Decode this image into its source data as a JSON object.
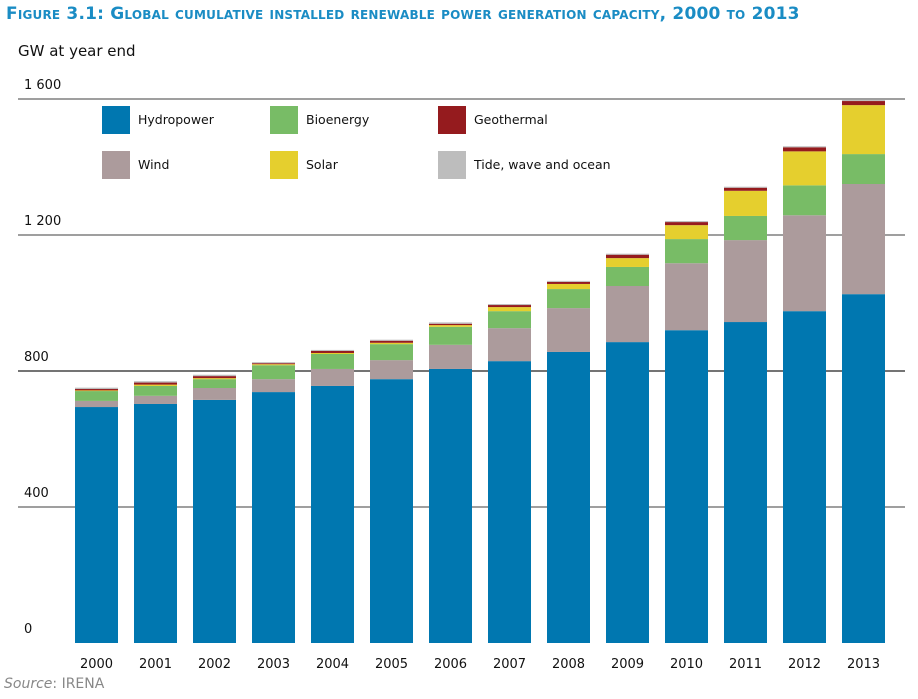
{
  "chart_data": {
    "type": "bar",
    "stacked": true,
    "title": "Figure 3.1: Global cumulative installed renewable power generation capacity, 2000 to 2013",
    "ylabel": "GW at year end",
    "xlabel": "",
    "ylim": [
      0,
      1600
    ],
    "yticks": [
      "0",
      "400",
      "800",
      "1 200",
      "1 600"
    ],
    "ytick_values": [
      0,
      400,
      800,
      1200,
      1600
    ],
    "grid": true,
    "legend_position": "top-left",
    "categories": [
      "2000",
      "2001",
      "2002",
      "2003",
      "2004",
      "2005",
      "2006",
      "2007",
      "2008",
      "2009",
      "2010",
      "2011",
      "2012",
      "2013"
    ],
    "series": [
      {
        "name": "Hydropower",
        "color": "#0077b0",
        "values": [
          694,
          703,
          715,
          738,
          756,
          776,
          806,
          829,
          856,
          885,
          920,
          944,
          976,
          1026
        ]
      },
      {
        "name": "Wind",
        "color": "#ac9b9c",
        "values": [
          18,
          24,
          35,
          38,
          50,
          56,
          71,
          97,
          129,
          165,
          197,
          241,
          282,
          324
        ]
      },
      {
        "name": "Bioenergy",
        "color": "#78bc66",
        "values": [
          29,
          29,
          26,
          41,
          44,
          47,
          53,
          50,
          56,
          56,
          71,
          71,
          88,
          88
        ]
      },
      {
        "name": "Solar",
        "color": "#e5cf2e",
        "values": [
          2,
          4,
          3,
          3,
          3,
          4,
          5,
          12,
          15,
          26,
          41,
          74,
          100,
          144
        ]
      },
      {
        "name": "Geothermal",
        "color": "#951b1e",
        "values": [
          4,
          6,
          6,
          3,
          6,
          6,
          4,
          6,
          6,
          10,
          9,
          9,
          12,
          12
        ]
      },
      {
        "name": "Tide, wave and ocean",
        "color": "#bdbdbd",
        "values": [
          4,
          4,
          4,
          3,
          3,
          3,
          4,
          3,
          3,
          3,
          3,
          3,
          3,
          3
        ]
      }
    ],
    "legend_order": [
      "Hydropower",
      "Bioenergy",
      "Geothermal",
      "Wind",
      "Solar",
      "Tide, wave and ocean"
    ]
  },
  "source": {
    "label": "Source",
    "value": ": IRENA"
  }
}
